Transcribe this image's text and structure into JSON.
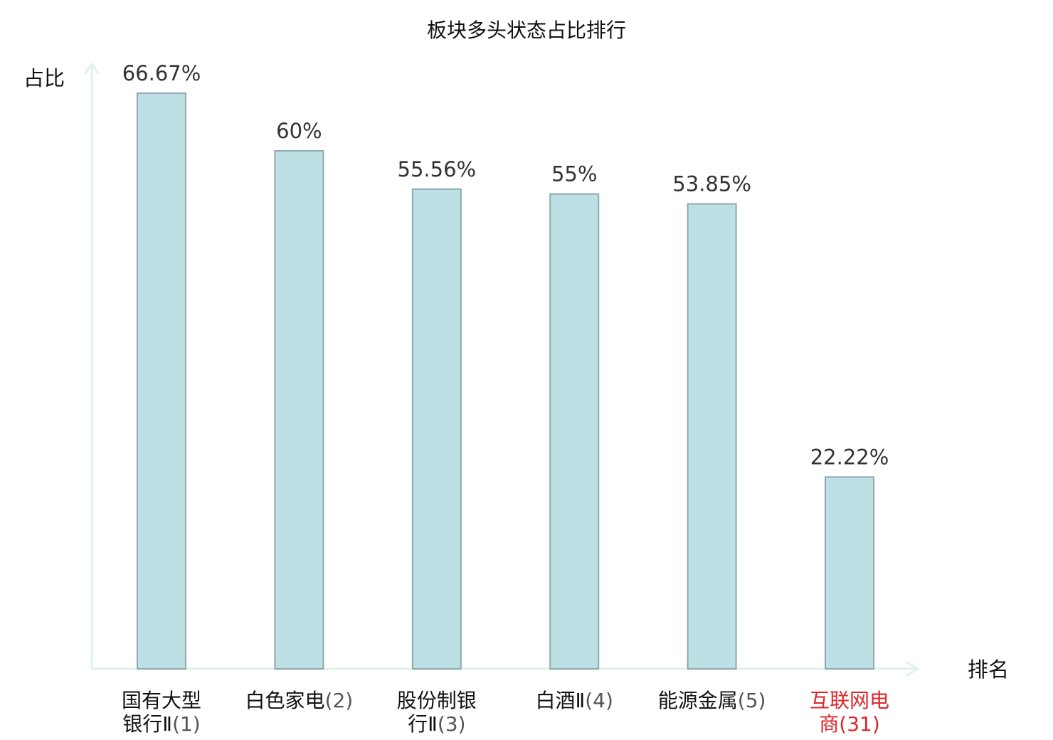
{
  "chart_data": {
    "type": "bar",
    "title": "板块多头状态占比排行",
    "ylabel": "占比",
    "xlabel": "排名",
    "ylim": [
      0,
      70
    ],
    "grid": false,
    "legend": "none",
    "categories": [
      {
        "lines": [
          "国有大型",
          "银行Ⅱ"
        ],
        "rank": "(1)"
      },
      {
        "lines": [
          "白色家电"
        ],
        "rank": "(2)"
      },
      {
        "lines": [
          "股份制银",
          "行Ⅱ"
        ],
        "rank": "(3)"
      },
      {
        "lines": [
          "白酒Ⅱ"
        ],
        "rank": "(4)"
      },
      {
        "lines": [
          "能源金属"
        ],
        "rank": "(5)"
      },
      {
        "lines": [
          "互联网电",
          "商"
        ],
        "rank": "(31)",
        "highlight": true
      }
    ],
    "values": [
      66.67,
      60,
      55.56,
      55,
      53.85,
      22.22
    ],
    "value_labels": [
      "66.67%",
      "60%",
      "55.56%",
      "55%",
      "53.85%",
      "22.22%"
    ],
    "colors": {
      "bar_fill": "#bce0e3",
      "bar_stroke": "#8eaaac",
      "axis": "#e1f2ee",
      "highlight_text": "#e0262b"
    }
  }
}
